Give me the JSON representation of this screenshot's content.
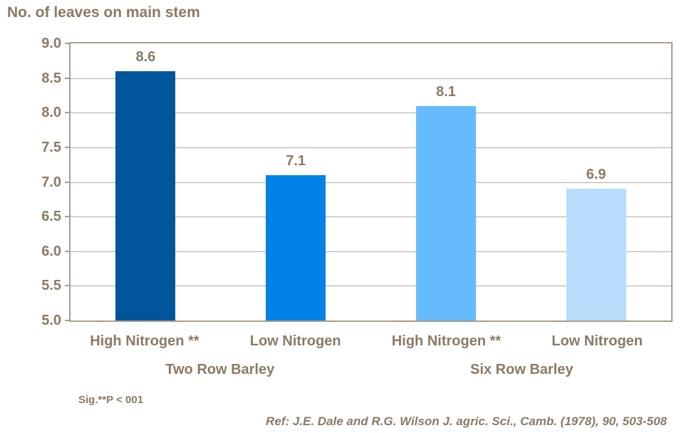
{
  "title": "No. of leaves on main stem",
  "chart_data": {
    "type": "bar",
    "title": "No. of leaves on main stem",
    "categories": [
      "High Nitrogen **",
      "Low Nitrogen",
      "High Nitrogen **",
      "Low Nitrogen"
    ],
    "values": [
      8.6,
      7.1,
      8.1,
      6.9
    ],
    "bar_colors": [
      "#01559b",
      "#0082e6",
      "#66bbfc",
      "#b8dcfc"
    ],
    "groups": [
      "Two Row Barley",
      "Six Row Barley"
    ],
    "ylim": [
      5.0,
      9.0
    ],
    "ytick_step": 0.5,
    "ytick_labels": [
      "9.0",
      "8.5",
      "8.0",
      "7.5",
      "7.0",
      "6.5",
      "6.0",
      "5.5",
      "5.0"
    ],
    "xlabel": "",
    "ylabel": "No. of leaves on main stem",
    "grid": true,
    "legend": "none"
  },
  "footnotes": {
    "significance": "Sig.**P < 001",
    "reference": "Ref: J.E. Dale and R.G. Wilson J. agric. Sci., Camb. (1978), 90, 503-508"
  },
  "colors": {
    "text": "#8a7a66",
    "axis_border": "#a89d8e",
    "gridline": "#b4aa9b",
    "background": "#ffffff"
  }
}
